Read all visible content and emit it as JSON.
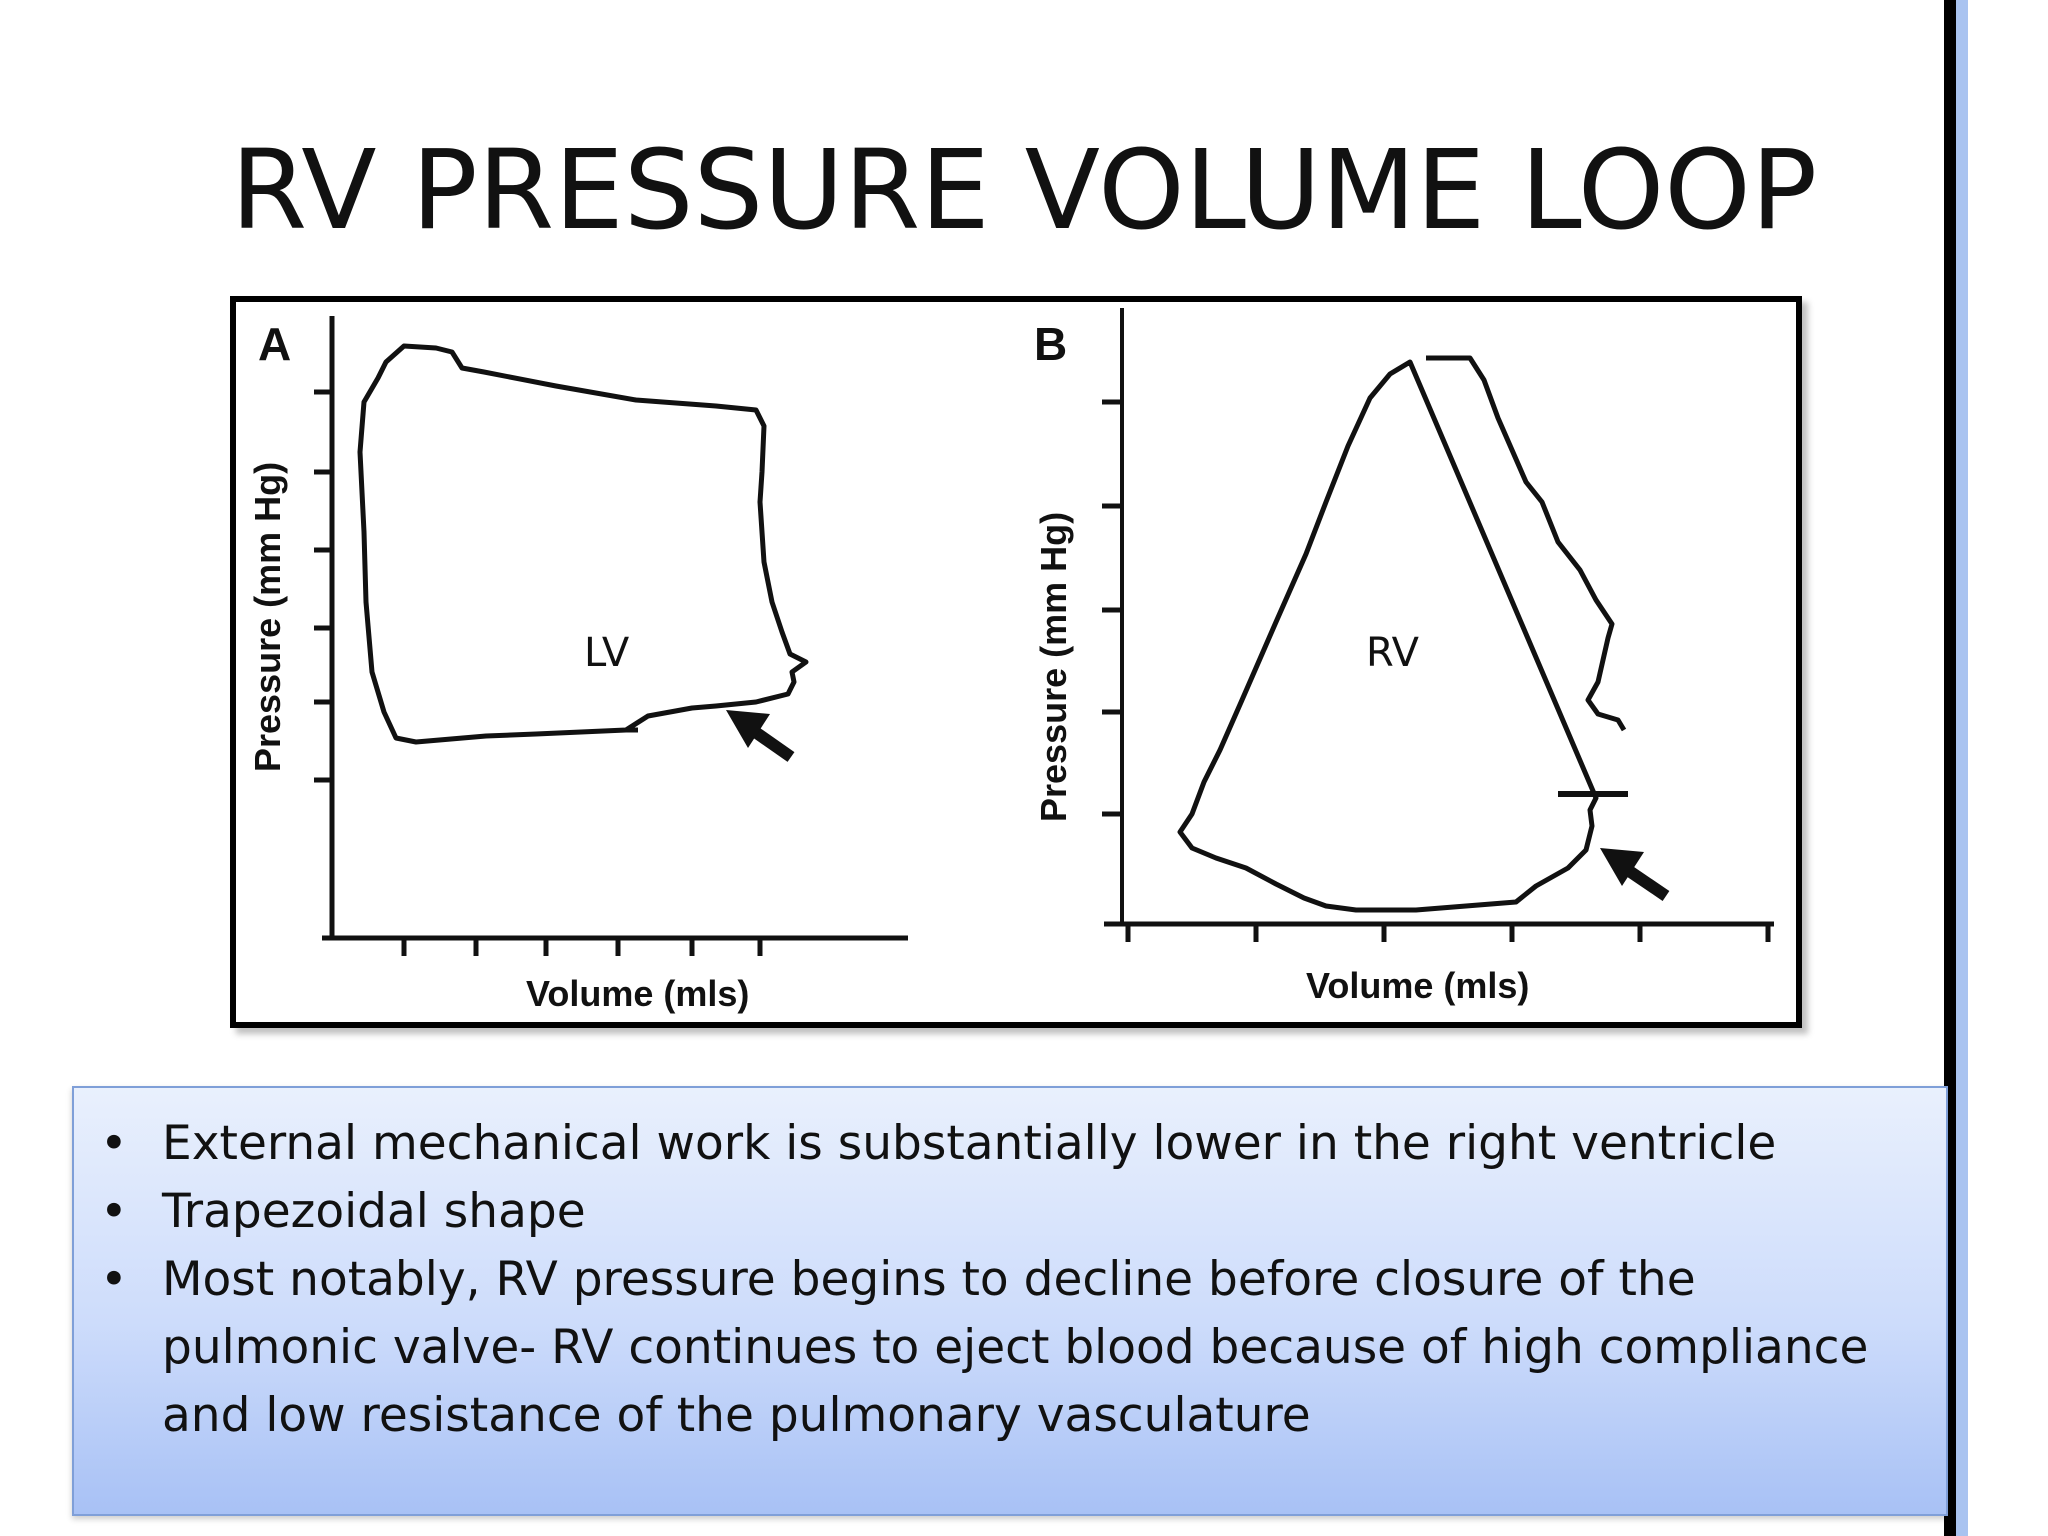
{
  "slide": {
    "title": "RV PRESSURE VOLUME LOOP"
  },
  "figure": {
    "panels": [
      {
        "letter": "A",
        "ylabel": "Pressure (mm Hg)",
        "xlabel": "Volume (mls)",
        "loop_label": "LV"
      },
      {
        "letter": "B",
        "ylabel": "Pressure (mm Hg)",
        "xlabel": "Volume (mls)",
        "loop_label": "RV"
      }
    ]
  },
  "bullets": {
    "marker": "•",
    "items": [
      "External mechanical work  is substantially lower in the right ventricle",
      "Trapezoidal shape",
      "Most notably, RV pressure begins to decline before closure of the pulmonic valve- RV continues to eject blood because of high compliance and low resistance of the pulmonary vasculature"
    ]
  },
  "colors": {
    "text": "#111111",
    "box_gradient_top": "#e9f0fd",
    "box_gradient_bottom": "#a8c1f5",
    "box_border": "#7f9fd8",
    "edge_bar_blue": "#a9c3f0",
    "edge_bar_black": "#000000"
  }
}
